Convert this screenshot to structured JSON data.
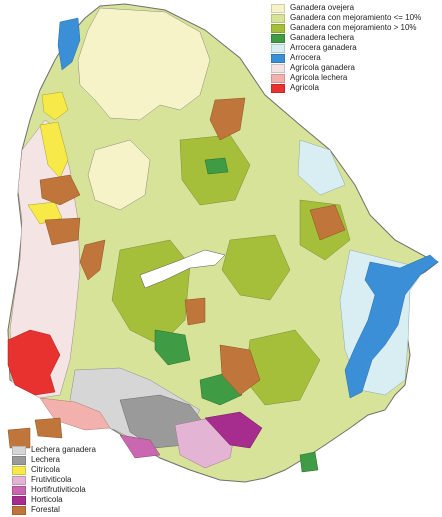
{
  "legend_top": [
    {
      "key": "ganadera-ovejera",
      "label": "Ganadera ovejera",
      "color": "#f7f3c8"
    },
    {
      "key": "ganadera-mejoramiento-low",
      "label": "Ganadera con mejoramiento <= 10%",
      "color": "#d8e39a"
    },
    {
      "key": "ganadera-mejoramiento-high",
      "label": "Ganadera con mejoramiento > 10%",
      "color": "#a6bf3a"
    },
    {
      "key": "ganadera-lechera",
      "label": "Ganadera lechera",
      "color": "#3f9b44"
    },
    {
      "key": "arrocera-ganadera",
      "label": "Arrocera ganadera",
      "color": "#d9eef2"
    },
    {
      "key": "arrocera",
      "label": "Arrocera",
      "color": "#3b8fd6"
    },
    {
      "key": "agricola-ganadera",
      "label": "Agricola ganadera",
      "color": "#f5e4e4"
    },
    {
      "key": "agricola-lechera",
      "label": "Agricola lechera",
      "color": "#f2b1ac"
    },
    {
      "key": "agricola",
      "label": "Agricola",
      "color": "#e8322f"
    }
  ],
  "legend_bottom": [
    {
      "key": "lechera-ganadera",
      "label": "Lechera ganadera",
      "color": "#d6d6d6"
    },
    {
      "key": "lechera",
      "label": "Lechera",
      "color": "#9a9a9a"
    },
    {
      "key": "citricola",
      "label": "Citricola",
      "color": "#f7e948"
    },
    {
      "key": "frutiviticola",
      "label": "Frutiviticola",
      "color": "#e3b4d4"
    },
    {
      "key": "hortifrutiviticola",
      "label": "Hortifrutiviticola",
      "color": "#c968b0"
    },
    {
      "key": "horticola",
      "label": "Horticola",
      "color": "#a62d8d"
    },
    {
      "key": "forestal",
      "label": "Forestal",
      "color": "#c0753a"
    }
  ]
}
